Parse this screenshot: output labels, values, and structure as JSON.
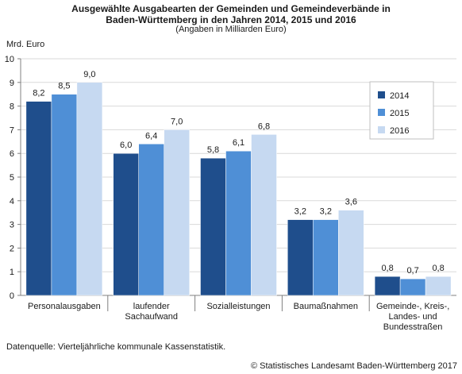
{
  "header": {
    "title_line1": "Ausgewählte Ausgabearten der Gemeinden und Gemeindeverbände in",
    "title_line2": "Baden-Württemberg in den Jahren 2014, 2015 und 2016",
    "subtitle": "(Angaben in Milliarden Euro)"
  },
  "footer": {
    "source": "Datenquelle: Vierteljährliche kommunale Kassenstatistik.",
    "copyright": "© Statistisches Landesamt Baden-Württemberg 2017"
  },
  "chart_data": {
    "type": "bar",
    "title": "Ausgewählte Ausgabearten der Gemeinden und Gemeindeverbände in Baden-Württemberg in den Jahren 2014, 2015 und 2016",
    "subtitle": "(Angaben in Milliarden Euro)",
    "ylabel": "Mrd. Euro",
    "xlabel": "",
    "ylim": [
      0,
      10
    ],
    "yticks": [
      "0",
      "1",
      "2",
      "3",
      "4",
      "5",
      "6",
      "7",
      "8",
      "9",
      "10"
    ],
    "grid": true,
    "legend_position": "top-right",
    "categories": [
      [
        "Personalausgaben"
      ],
      [
        "laufender",
        "Sachaufwand"
      ],
      [
        "Sozialleistungen"
      ],
      [
        "Baumaßnahmen"
      ],
      [
        "Gemeinde-, Kreis-,",
        "Landes- und",
        "Bundesstraßen"
      ]
    ],
    "series": [
      {
        "name": "2014",
        "color": "#1f4e8c",
        "values": [
          8.2,
          6.0,
          5.8,
          3.2,
          0.8
        ],
        "labels": [
          "8,2",
          "6,0",
          "5,8",
          "3,2",
          "0,8"
        ]
      },
      {
        "name": "2015",
        "color": "#4f8fd6",
        "values": [
          8.5,
          6.4,
          6.1,
          3.2,
          0.7
        ],
        "labels": [
          "8,5",
          "6,4",
          "6,1",
          "3,2",
          "0,7"
        ]
      },
      {
        "name": "2016",
        "color": "#c6d9f1",
        "values": [
          9.0,
          7.0,
          6.8,
          3.6,
          0.8
        ],
        "labels": [
          "9,0",
          "7,0",
          "6,8",
          "3,6",
          "0,8"
        ]
      }
    ]
  }
}
